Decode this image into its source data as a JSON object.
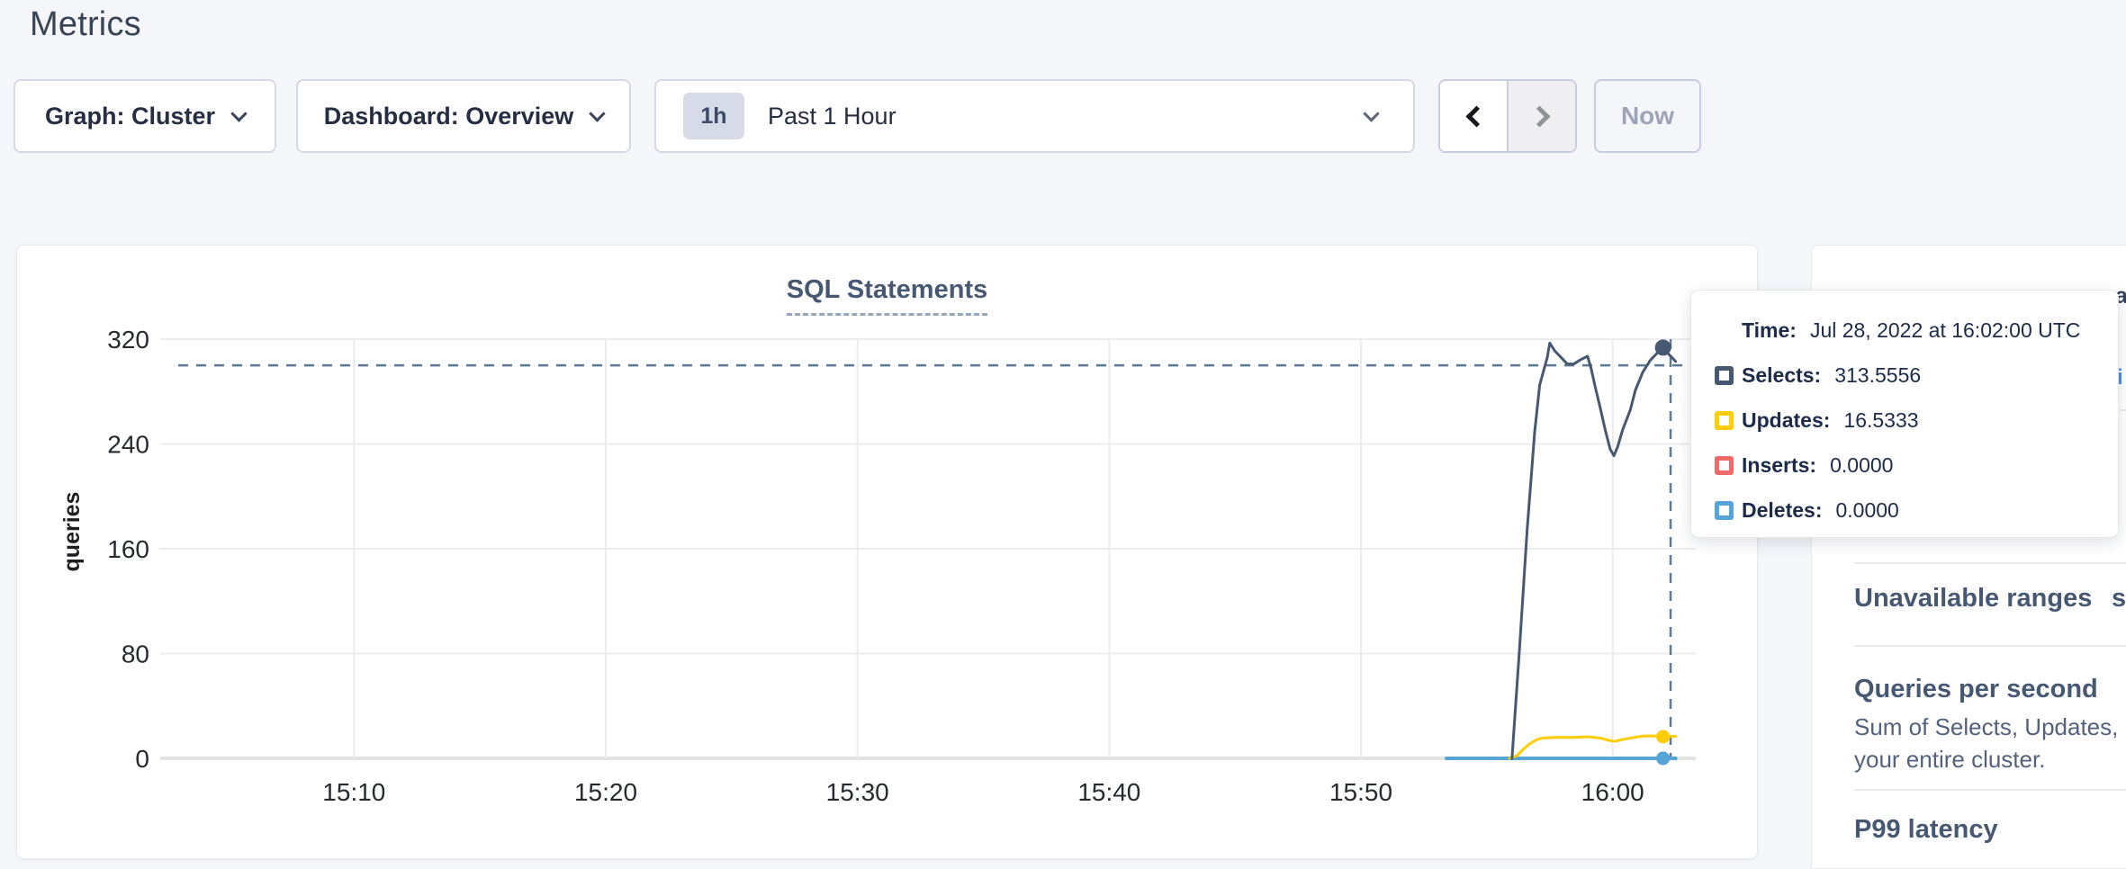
{
  "header": {
    "title": "Metrics"
  },
  "controls": {
    "graph_selector": {
      "label": "Graph: Cluster"
    },
    "dashboard_selector": {
      "label": "Dashboard: Overview"
    },
    "time_window": {
      "badge": "1h",
      "label": "Past 1 Hour"
    },
    "now_button": {
      "label": "Now"
    }
  },
  "chart_data": {
    "type": "line",
    "title": "SQL Statements",
    "ylabel": "queries",
    "ylim": [
      0,
      320
    ],
    "yticks": [
      0,
      80,
      160,
      240,
      320
    ],
    "xlim_minutes_after_1500": [
      2.3,
      63.3
    ],
    "xticks": [
      {
        "t": 10,
        "label": "15:10"
      },
      {
        "t": 20,
        "label": "15:20"
      },
      {
        "t": 30,
        "label": "15:30"
      },
      {
        "t": 40,
        "label": "15:40"
      },
      {
        "t": 50,
        "label": "15:50"
      },
      {
        "t": 60,
        "label": "16:00"
      }
    ],
    "grid": true,
    "legend_position": "none",
    "series": [
      {
        "name": "Inserts",
        "color": "#f16969",
        "width": 3,
        "points": [
          [
            53.4,
            0
          ],
          [
            62.5,
            0
          ]
        ]
      },
      {
        "name": "Deletes",
        "color": "#55a5d8",
        "width": 4,
        "points": [
          [
            53.4,
            0
          ],
          [
            62.5,
            0
          ]
        ]
      },
      {
        "name": "Updates",
        "color": "#ffcd02",
        "width": 3,
        "points": [
          [
            55.9,
            0
          ],
          [
            56.2,
            2
          ],
          [
            56.45,
            7
          ],
          [
            56.7,
            11
          ],
          [
            56.95,
            14
          ],
          [
            57.2,
            15.5
          ],
          [
            57.7,
            16
          ],
          [
            58.4,
            16
          ],
          [
            59.0,
            16.5
          ],
          [
            59.5,
            15.5
          ],
          [
            59.9,
            13.5
          ],
          [
            60.1,
            13
          ],
          [
            60.3,
            14
          ],
          [
            60.7,
            15.5
          ],
          [
            61.2,
            17
          ],
          [
            61.6,
            17.2
          ],
          [
            62.0,
            16.5333
          ],
          [
            62.5,
            16.8
          ]
        ]
      },
      {
        "name": "Selects",
        "color": "#475872",
        "width": 3,
        "points": [
          [
            56.0,
            0
          ],
          [
            56.3,
            84
          ],
          [
            56.6,
            174
          ],
          [
            56.9,
            249
          ],
          [
            57.1,
            285
          ],
          [
            57.4,
            306
          ],
          [
            57.5,
            317
          ],
          [
            57.7,
            311
          ],
          [
            58.0,
            305
          ],
          [
            58.2,
            301
          ],
          [
            58.45,
            301
          ],
          [
            58.7,
            304
          ],
          [
            59.0,
            307
          ],
          [
            59.15,
            297
          ],
          [
            59.3,
            284
          ],
          [
            59.5,
            268
          ],
          [
            59.7,
            251
          ],
          [
            59.9,
            236
          ],
          [
            60.05,
            231
          ],
          [
            60.2,
            238
          ],
          [
            60.4,
            251
          ],
          [
            60.7,
            266
          ],
          [
            60.9,
            281
          ],
          [
            61.2,
            295
          ],
          [
            61.5,
            304
          ],
          [
            61.8,
            310
          ],
          [
            62.0,
            313.5556
          ],
          [
            62.25,
            308
          ],
          [
            62.5,
            303
          ]
        ]
      }
    ],
    "crosshair": {
      "vline_t": 62.3,
      "hline_v": 300,
      "color": "#5d7a94"
    },
    "hover_points": [
      {
        "series": "Inserts",
        "t": 62.0,
        "v": 0,
        "color": "#f16969"
      },
      {
        "series": "Deletes",
        "t": 62.0,
        "v": 0,
        "color": "#55a5d8"
      },
      {
        "series": "Updates",
        "t": 62.0,
        "v": 16.5333,
        "color": "#ffcd02"
      },
      {
        "series": "Selects",
        "t": 62.0,
        "v": 313.5556,
        "color": "#475872"
      }
    ]
  },
  "tooltip": {
    "time_label": "Time:",
    "time_value": "Jul 28, 2022 at 16:02:00 UTC",
    "rows": [
      {
        "label": "Selects:",
        "value": "313.5556",
        "color": "#475872"
      },
      {
        "label": "Updates:",
        "value": "16.5333",
        "color": "#ffcd02"
      },
      {
        "label": "Inserts:",
        "value": "0.0000",
        "color": "#f16969"
      },
      {
        "label": "Deletes:",
        "value": "0.0000",
        "color": "#55a5d8"
      }
    ]
  },
  "sidebar": {
    "items": [
      {
        "title": "Unavailable ranges",
        "description_line1": "",
        "description_line2": ""
      },
      {
        "title": "Queries per second",
        "description_line1": "Sum of Selects, Updates, Inserts",
        "description_line2": "your entire cluster."
      },
      {
        "title": "P99 latency",
        "description_line1": "",
        "description_line2": ""
      }
    ],
    "edge_fragments": [
      {
        "text": "a",
        "color": "#32405c"
      },
      {
        "text": "i",
        "color": "#4a90e2"
      },
      {
        "text": "s",
        "color": "#475872"
      }
    ]
  },
  "colors": {
    "page_bg": "#f4f6fa",
    "panel_bg": "#ffffff",
    "heading": "#475872",
    "selects": "#475872",
    "updates": "#ffcd02",
    "inserts": "#f16969",
    "deletes": "#55a5d8",
    "crosshair": "#5d7a94"
  }
}
